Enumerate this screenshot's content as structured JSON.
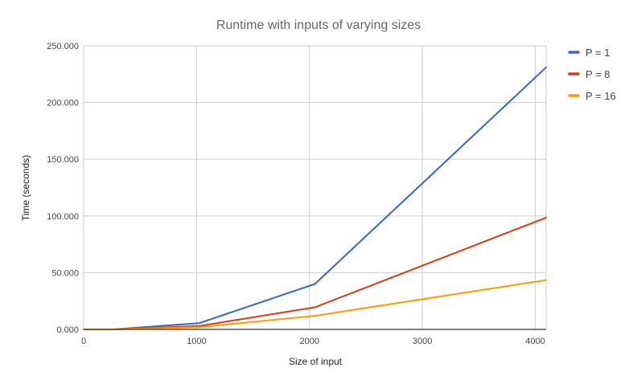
{
  "chart_data": {
    "type": "line",
    "title": "Runtime with inputs of varying sizes",
    "xlabel": "Size of input",
    "ylabel": "Time (seconds)",
    "xlim": [
      0,
      4096
    ],
    "ylim": [
      0,
      250
    ],
    "x_ticks": [
      0,
      1000,
      2000,
      3000,
      4000
    ],
    "x_tick_labels": [
      "0",
      "1000",
      "2000",
      "3000",
      "4000"
    ],
    "y_ticks": [
      0,
      50,
      100,
      150,
      200,
      250
    ],
    "y_tick_labels": [
      "0.000",
      "50.000",
      "100.000",
      "150.000",
      "200.000",
      "250.000"
    ],
    "grid": true,
    "legend_position": "right",
    "x": [
      1,
      256,
      1024,
      2048,
      4096
    ],
    "series": [
      {
        "name": "P = 1",
        "color": "#3366cc",
        "values": [
          0,
          0,
          5.5,
          40,
          231
        ]
      },
      {
        "name": "P = 8",
        "color": "#dc3912",
        "values": [
          0,
          0,
          3,
          19.5,
          98.5
        ]
      },
      {
        "name": "P = 16",
        "color": "#ff9900",
        "values": [
          0,
          0,
          2,
          12,
          43.5
        ]
      }
    ]
  }
}
